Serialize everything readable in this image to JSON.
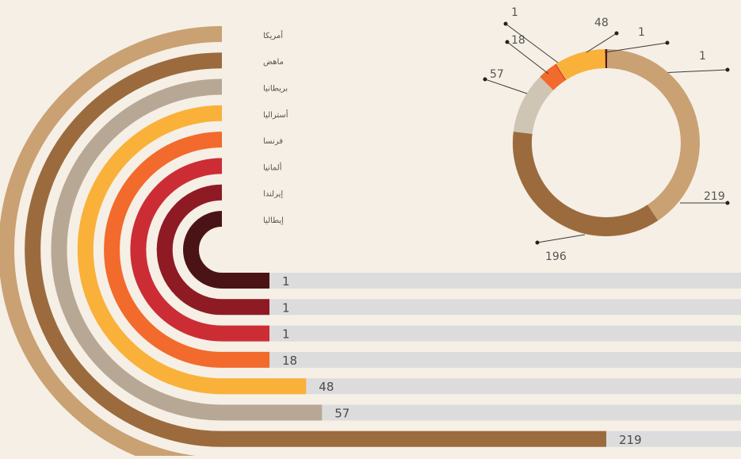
{
  "chart_data": [
    {
      "type": "bar",
      "style": "radial-to-horizontal",
      "categories": [
        "أمريكا",
        "ماهض",
        "بريطانيا",
        "أستراليا",
        "فرنسا",
        "ألمانيا",
        "إيرلندا",
        "إيطاليا"
      ],
      "values": [
        196,
        219,
        57,
        48,
        18,
        1,
        1,
        1
      ],
      "colors": [
        "#c9a173",
        "#9b6b3e",
        "#b7a895",
        "#f9b13a",
        "#f26a2c",
        "#cc2d35",
        "#8e1b24",
        "#4a1416"
      ],
      "track_color": "#dcdcdc",
      "legend": "top-center"
    },
    {
      "type": "pie",
      "style": "donut",
      "values": [
        1,
        219,
        196,
        57,
        18,
        1,
        48,
        1
      ],
      "labels": [
        "1",
        "219",
        "196",
        "57",
        "18",
        "1",
        "48",
        "1"
      ],
      "colors": [
        "#5a1a12",
        "#c9a173",
        "#9b6b3e",
        "#cfc5b5",
        "#f26a2c",
        "#cc2d35",
        "#f9b13a",
        "#4a1416"
      ]
    }
  ]
}
